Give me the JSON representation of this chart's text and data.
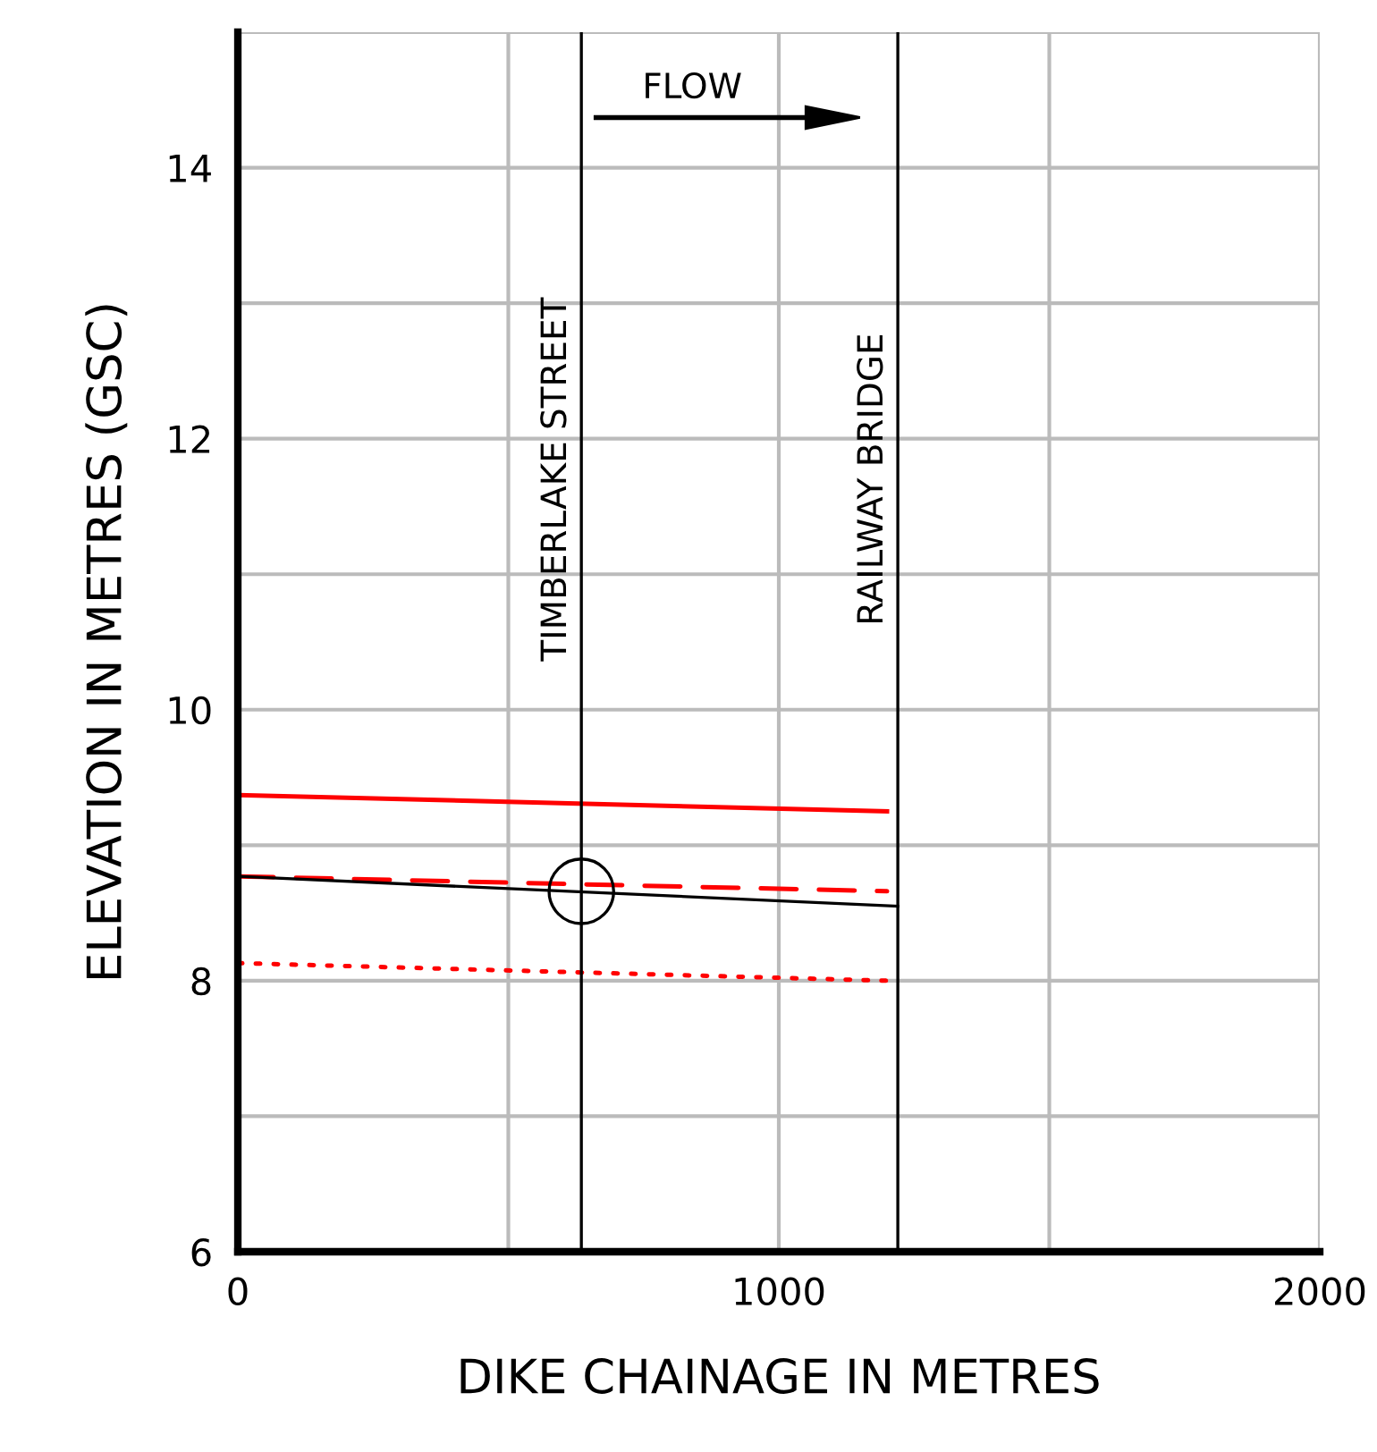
{
  "chart_data": {
    "type": "line",
    "xlabel": "DIKE CHAINAGE IN METRES",
    "ylabel": "ELEVATION IN METRES (GSC)",
    "xlim": [
      0,
      2000
    ],
    "ylim": [
      6,
      15
    ],
    "xticks": [
      0,
      {
        "value": 500,
        "label": null
      },
      1000,
      {
        "value": 1500,
        "label": null
      },
      2000
    ],
    "yticks": [
      6,
      {
        "value": 7,
        "label": null
      },
      8,
      {
        "value": 9,
        "label": null
      },
      10,
      {
        "value": 11,
        "label": null
      },
      12,
      {
        "value": 13,
        "label": null
      },
      14,
      {
        "value": 15,
        "label": null
      }
    ],
    "grid": true,
    "series": [
      {
        "color": "#ff0000",
        "line_style": "solid",
        "x": [
          0,
          1200
        ],
        "values": [
          9.37,
          9.25
        ]
      },
      {
        "color": "#ff0000",
        "line_style": "dashed",
        "x": [
          0,
          1200
        ],
        "values": [
          8.77,
          8.66
        ]
      },
      {
        "color": "#ff0000",
        "line_style": "dotted",
        "x": [
          0,
          1200
        ],
        "values": [
          8.13,
          8.0
        ]
      },
      {
        "color": "#000000",
        "line_style": "solid",
        "x": [
          0,
          1220
        ],
        "values": [
          8.77,
          8.55
        ]
      },
      {
        "type": "scatter",
        "marker": "circle",
        "color": "#000000",
        "x": [
          635
        ],
        "values": [
          8.66
        ]
      }
    ],
    "ref_lines": [
      {
        "axis": "x",
        "value": 635,
        "label": "TIMBERLAKE STREET",
        "color": "#000000"
      },
      {
        "axis": "x",
        "value": 1220,
        "label": "RAILWAY BRIDGE",
        "color": "#000000"
      }
    ],
    "annotations": [
      "FLOW"
    ]
  }
}
